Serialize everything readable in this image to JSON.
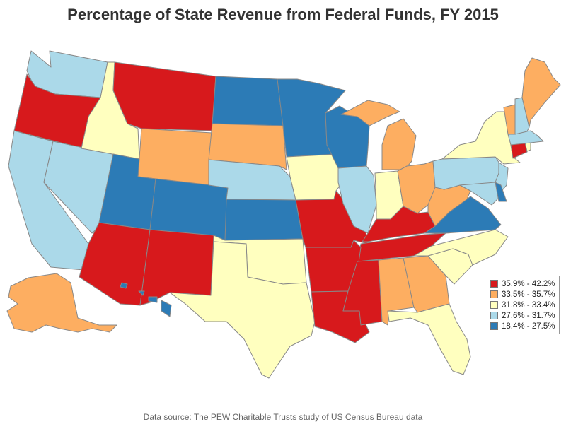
{
  "title": "Percentage of State Revenue from Federal Funds, FY 2015",
  "source": "Data source: The PEW Charitable Trusts study of US Census Bureau data",
  "colors": {
    "c1": "#d7191c",
    "c2": "#fdae61",
    "c3": "#ffffbf",
    "c4": "#abd9e9",
    "c5": "#2c7bb6"
  },
  "legend": [
    {
      "label": "35.9% - 42.2%",
      "color": "#d7191c"
    },
    {
      "label": "33.5% - 35.7%",
      "color": "#fdae61"
    },
    {
      "label": "31.8% - 33.4%",
      "color": "#ffffbf"
    },
    {
      "label": "27.6% - 31.7%",
      "color": "#abd9e9"
    },
    {
      "label": "18.4% - 27.5%",
      "color": "#2c7bb6"
    }
  ]
}
